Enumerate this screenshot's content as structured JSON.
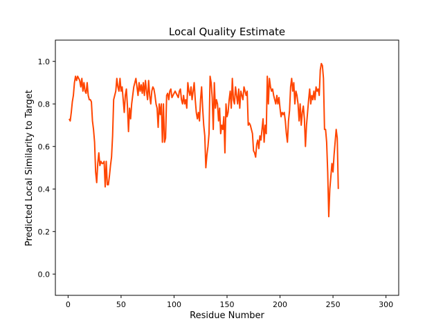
{
  "chart_data": {
    "type": "line",
    "title": "Local Quality Estimate",
    "xlabel": "Residue Number",
    "ylabel": "Predicted Local Similarity to Target",
    "xlim": [
      -12,
      312
    ],
    "ylim": [
      -0.1,
      1.1
    ],
    "xticks": [
      0,
      50,
      100,
      150,
      200,
      250,
      300
    ],
    "yticks": [
      0.0,
      0.2,
      0.4,
      0.6,
      0.8,
      1.0
    ],
    "ytick_labels": [
      "0.0",
      "0.2",
      "0.4",
      "0.6",
      "0.8",
      "1.0"
    ],
    "grid": false,
    "legend": "none",
    "line_color": "#FF4500",
    "series": [
      {
        "x_start": 1,
        "values": [
          0.73,
          0.72,
          0.76,
          0.81,
          0.84,
          0.9,
          0.93,
          0.91,
          0.93,
          0.92,
          0.91,
          0.88,
          0.92,
          0.86,
          0.9,
          0.86,
          0.85,
          0.9,
          0.84,
          0.82,
          0.82,
          0.81,
          0.72,
          0.68,
          0.62,
          0.48,
          0.43,
          0.52,
          0.57,
          0.51,
          0.53,
          0.52,
          0.52,
          0.53,
          0.41,
          0.53,
          0.42,
          0.42,
          0.46,
          0.51,
          0.55,
          0.65,
          0.82,
          0.84,
          0.86,
          0.92,
          0.88,
          0.86,
          0.92,
          0.86,
          0.88,
          0.82,
          0.76,
          0.84,
          0.87,
          0.79,
          0.67,
          0.78,
          0.73,
          0.8,
          0.84,
          0.88,
          0.9,
          0.92,
          0.88,
          0.84,
          0.9,
          0.86,
          0.89,
          0.85,
          0.9,
          0.84,
          0.91,
          0.86,
          0.82,
          0.91,
          0.84,
          0.8,
          0.86,
          0.88,
          0.87,
          0.84,
          0.8,
          0.78,
          0.69,
          0.8,
          0.75,
          0.8,
          0.62,
          0.8,
          0.62,
          0.64,
          0.84,
          0.85,
          0.82,
          0.86,
          0.87,
          0.83,
          0.84,
          0.85,
          0.86,
          0.85,
          0.84,
          0.83,
          0.86,
          0.87,
          0.82,
          0.8,
          0.84,
          0.8,
          0.82,
          0.78,
          0.9,
          0.86,
          0.84,
          0.88,
          0.82,
          0.86,
          0.9,
          0.82,
          0.76,
          0.73,
          0.76,
          0.72,
          0.82,
          0.88,
          0.78,
          0.7,
          0.65,
          0.5,
          0.56,
          0.6,
          0.66,
          0.93,
          0.9,
          0.83,
          0.68,
          0.9,
          0.78,
          0.82,
          0.8,
          0.72,
          0.78,
          0.66,
          0.7,
          0.68,
          0.74,
          0.57,
          0.8,
          0.74,
          0.76,
          0.82,
          0.86,
          0.78,
          0.92,
          0.82,
          0.8,
          0.88,
          0.84,
          0.8,
          0.87,
          0.78,
          0.86,
          0.84,
          0.82,
          0.88,
          0.86,
          0.84,
          0.86,
          0.7,
          0.71,
          0.7,
          0.68,
          0.66,
          0.58,
          0.57,
          0.55,
          0.61,
          0.63,
          0.59,
          0.65,
          0.63,
          0.68,
          0.73,
          0.62,
          0.7,
          0.66,
          0.93,
          0.8,
          0.92,
          0.88,
          0.86,
          0.87,
          0.84,
          0.82,
          0.8,
          0.84,
          0.8,
          0.83,
          0.78,
          0.74,
          0.76,
          0.75,
          0.76,
          0.72,
          0.66,
          0.62,
          0.72,
          0.77,
          0.88,
          0.92,
          0.86,
          0.9,
          0.8,
          0.86,
          0.84,
          0.8,
          0.72,
          0.8,
          0.7,
          0.76,
          0.79,
          0.73,
          0.6,
          0.7,
          0.76,
          0.82,
          0.87,
          0.8,
          0.84,
          0.82,
          0.86,
          0.82,
          0.88,
          0.86,
          0.87,
          0.84,
          0.96,
          0.99,
          0.98,
          0.92,
          0.68,
          0.68,
          0.62,
          0.48,
          0.27,
          0.4,
          0.46,
          0.52,
          0.48,
          0.56,
          0.62,
          0.68,
          0.64,
          0.4
        ]
      }
    ]
  }
}
